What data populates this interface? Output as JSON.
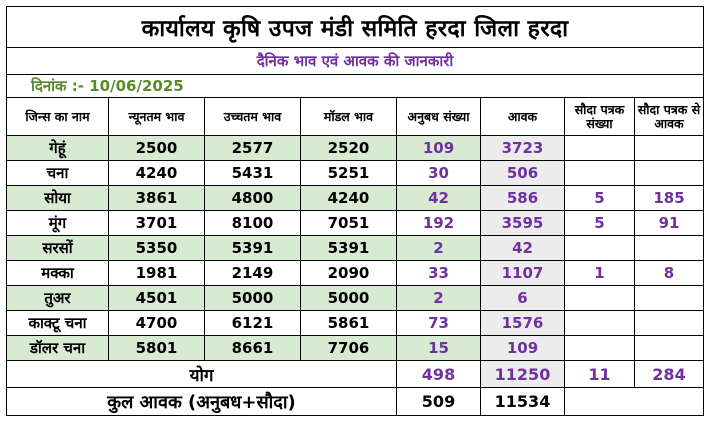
{
  "title": "कार्यालय कृषि उपज मंडी समिति हरदा जिला हरदा",
  "subtitle": "दैनिक भाव एवं आवक की जानकारी",
  "date_text": "दिनांक :- 10/06/2025",
  "headers": {
    "commodity": "जिन्स का नाम",
    "min_price": "न्यूनतम भाव",
    "max_price": "उच्चतम भाव",
    "modal_price": "मॉडल भाव",
    "contract_count": "अनुबध संख्या",
    "arrival": "आवक",
    "deal_count": "सौदा पत्रक संख्या",
    "deal_arrival": "सौदा पत्रक से आवक"
  },
  "rows": [
    {
      "name": "गेहूं",
      "min": "2500",
      "max": "2577",
      "modal": "2520",
      "contracts": "109",
      "arrival": "3723",
      "deals": "",
      "deal_arrival": ""
    },
    {
      "name": "चना",
      "min": "4240",
      "max": "5431",
      "modal": "5251",
      "contracts": "30",
      "arrival": "506",
      "deals": "",
      "deal_arrival": ""
    },
    {
      "name": "सोया",
      "min": "3861",
      "max": "4800",
      "modal": "4240",
      "contracts": "42",
      "arrival": "586",
      "deals": "5",
      "deal_arrival": "185"
    },
    {
      "name": "मूंग",
      "min": "3701",
      "max": "8100",
      "modal": "7051",
      "contracts": "192",
      "arrival": "3595",
      "deals": "5",
      "deal_arrival": "91"
    },
    {
      "name": "सरसों",
      "min": "5350",
      "max": "5391",
      "modal": "5391",
      "contracts": "2",
      "arrival": "42",
      "deals": "",
      "deal_arrival": ""
    },
    {
      "name": "मक्का",
      "min": "1981",
      "max": "2149",
      "modal": "2090",
      "contracts": "33",
      "arrival": "1107",
      "deals": "1",
      "deal_arrival": "8"
    },
    {
      "name": "तुअर",
      "min": "4501",
      "max": "5000",
      "modal": "5000",
      "contracts": "2",
      "arrival": "6",
      "deals": "",
      "deal_arrival": ""
    },
    {
      "name": "काक्टू चना",
      "min": "4700",
      "max": "6121",
      "modal": "5861",
      "contracts": "73",
      "arrival": "1576",
      "deals": "",
      "deal_arrival": ""
    },
    {
      "name": "डॉलर चना",
      "min": "5801",
      "max": "8661",
      "modal": "7706",
      "contracts": "15",
      "arrival": "109",
      "deals": "",
      "deal_arrival": ""
    }
  ],
  "total": {
    "label": "योग",
    "contracts": "498",
    "arrival": "11250",
    "deals": "11",
    "deal_arrival": "284"
  },
  "grand_total": {
    "label": "कुल आवक (अनुबध+सौदा)",
    "contracts": "509",
    "arrival": "11534"
  }
}
